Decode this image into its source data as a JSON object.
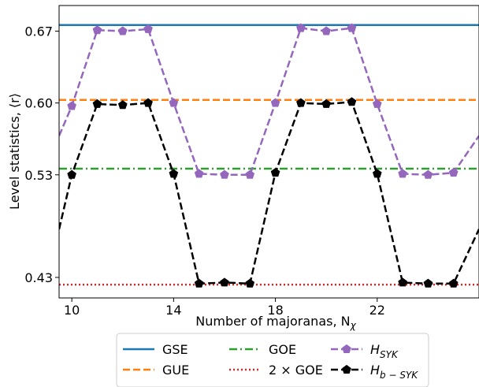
{
  "chart_data": {
    "type": "line",
    "xlabel": "Number of majoranas, N",
    "xlabel_sub": "χ",
    "ylabel": "Level statistics, ⟨r⟩",
    "xlim": [
      9.5,
      26.0
    ],
    "ylim": [
      0.41,
      0.695
    ],
    "xticks": [
      10,
      14,
      18,
      22
    ],
    "yticks": [
      0.43,
      0.53,
      0.6,
      0.67
    ],
    "ytick_labels": [
      "0.43",
      "0.53",
      "0.60",
      "0.67"
    ],
    "grid": false,
    "legend_position": "below",
    "reference_lines": [
      {
        "name": "GSE",
        "value": 0.676,
        "color": "#1f77b4",
        "style": "solid"
      },
      {
        "name": "GUE",
        "value": 0.603,
        "color": "#ff7f0e",
        "style": "dashed"
      },
      {
        "name": "GOE",
        "value": 0.536,
        "color": "#2ca02c",
        "style": "dashdot"
      },
      {
        "name": "2 × GOE",
        "value": 0.423,
        "color": "#d62728",
        "style": "dotted"
      }
    ],
    "series": [
      {
        "name": "H",
        "name_sub": "SYK",
        "color": "#9467bd",
        "marker": "pentagon",
        "x": [
          9.5,
          10,
          11,
          12,
          13,
          14,
          15,
          16,
          17,
          18,
          19,
          20,
          21,
          22,
          23,
          24,
          25,
          26
        ],
        "y": [
          0.568,
          0.597,
          0.671,
          0.67,
          0.672,
          0.6,
          0.531,
          0.53,
          0.53,
          0.6,
          0.673,
          0.67,
          0.673,
          0.599,
          0.531,
          0.53,
          0.532,
          0.568
        ],
        "markers": [
          false,
          true,
          true,
          true,
          true,
          true,
          true,
          true,
          true,
          true,
          true,
          true,
          true,
          true,
          true,
          true,
          true,
          false
        ]
      },
      {
        "name": "H",
        "name_sub": "b − SYK",
        "color": "#000000",
        "marker": "pentagon",
        "x": [
          9.5,
          10,
          11,
          12,
          13,
          14,
          15,
          16,
          17,
          18,
          19,
          20,
          21,
          22,
          23,
          24,
          25,
          26
        ],
        "y": [
          0.477,
          0.53,
          0.599,
          0.598,
          0.6,
          0.531,
          0.424,
          0.425,
          0.424,
          0.532,
          0.6,
          0.599,
          0.601,
          0.531,
          0.425,
          0.424,
          0.424,
          0.477
        ],
        "markers": [
          false,
          true,
          true,
          true,
          true,
          true,
          true,
          true,
          true,
          true,
          true,
          true,
          true,
          true,
          true,
          true,
          true,
          false
        ]
      }
    ],
    "legend": [
      {
        "label": "GSE",
        "ref": "line",
        "index": 0
      },
      {
        "label": "GUE",
        "ref": "line",
        "index": 1
      },
      {
        "label": "GOE",
        "ref": "line",
        "index": 2
      },
      {
        "label": "2 × GOE",
        "ref": "line",
        "index": 3
      },
      {
        "label": "H",
        "sub": "SYK",
        "ref": "series",
        "index": 0
      },
      {
        "label": "H",
        "sub": "b − SYK",
        "ref": "series",
        "index": 1
      }
    ]
  }
}
